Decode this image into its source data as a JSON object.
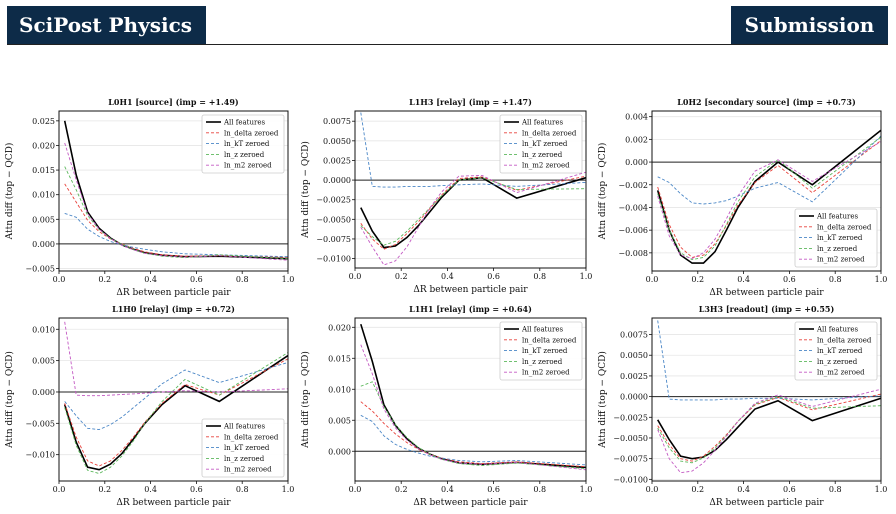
{
  "header": {
    "journal": "SciPost Physics",
    "section": "Submission"
  },
  "chart_data": [
    {
      "type": "line",
      "title": "L0H1  [source]  (imp = +1.49)",
      "xlabel": "ΔR between particle pair",
      "ylabel": "Attn diff (top − QCD)",
      "xlim": [
        0,
        1
      ],
      "ylim": [
        -0.0055,
        0.027
      ],
      "xticks": [
        0.0,
        0.2,
        0.4,
        0.6,
        0.8,
        1.0
      ],
      "xtick_labels": [
        "0.0",
        "0.2",
        "0.4",
        "0.6",
        "0.8",
        "1.0"
      ],
      "yticks": [
        -0.005,
        0,
        0.005,
        0.01,
        0.015,
        0.02,
        0.025
      ],
      "ytick_labels": [
        "−0.005",
        "0.000",
        "0.005",
        "0.010",
        "0.015",
        "0.020",
        "0.025"
      ],
      "legend_position": "top-right",
      "x": [
        0.025,
        0.075,
        0.125,
        0.175,
        0.225,
        0.275,
        0.325,
        0.375,
        0.45,
        0.55,
        0.7,
        1.0
      ],
      "series": [
        {
          "name": "All features",
          "color": "#000000",
          "values": [
            0.025,
            0.014,
            0.0065,
            0.0032,
            0.0012,
            -0.0002,
            -0.0011,
            -0.0018,
            -0.0023,
            -0.0026,
            -0.0025,
            -0.003
          ]
        },
        {
          "name": "ln_delta zeroed",
          "color": "#e8403a",
          "values": [
            0.0122,
            0.0085,
            0.0048,
            0.0025,
            0.001,
            0,
            -0.0009,
            -0.0016,
            -0.0022,
            -0.0025,
            -0.0024,
            -0.0027
          ]
        },
        {
          "name": "ln_kT zeroed",
          "color": "#4a86c6",
          "values": [
            0.0062,
            0.0054,
            0.003,
            0.0015,
            0.0005,
            -0.0002,
            -0.0007,
            -0.0011,
            -0.0016,
            -0.002,
            -0.0022,
            -0.0026
          ]
        },
        {
          "name": "ln_z zeroed",
          "color": "#5cb85c",
          "values": [
            0.0157,
            0.011,
            0.0058,
            0.0029,
            0.0011,
            -0.0001,
            -0.0011,
            -0.0019,
            -0.0025,
            -0.0028,
            -0.0022,
            -0.003
          ]
        },
        {
          "name": "ln_m2 zeroed",
          "color": "#c359c3",
          "values": [
            0.0205,
            0.013,
            0.0062,
            0.003,
            0.0011,
            -0.0003,
            -0.0012,
            -0.0019,
            -0.0024,
            -0.0027,
            -0.0024,
            -0.0033
          ]
        }
      ]
    },
    {
      "type": "line",
      "title": "L1H3  [relay]  (imp = +1.47)",
      "xlabel": "ΔR between particle pair",
      "ylabel": "Attn diff (top − QCD)",
      "xlim": [
        0,
        1
      ],
      "ylim": [
        -0.0112,
        0.0088
      ],
      "xticks": [
        0.0,
        0.2,
        0.4,
        0.6,
        0.8,
        1.0
      ],
      "xtick_labels": [
        "0.0",
        "0.2",
        "0.4",
        "0.6",
        "0.8",
        "1.0"
      ],
      "yticks": [
        -0.01,
        -0.0075,
        -0.005,
        -0.0025,
        0,
        0.0025,
        0.005,
        0.0075
      ],
      "ytick_labels": [
        "−0.0100",
        "−0.0075",
        "−0.0050",
        "−0.0025",
        "0.0000",
        "0.0025",
        "0.0050",
        "0.0075"
      ],
      "legend_position": "top-right",
      "x": [
        0.025,
        0.075,
        0.125,
        0.175,
        0.225,
        0.275,
        0.325,
        0.375,
        0.45,
        0.55,
        0.7,
        1.0
      ],
      "series": [
        {
          "name": "All features",
          "color": "#000000",
          "values": [
            -0.0035,
            -0.0065,
            -0.0086,
            -0.0084,
            -0.0073,
            -0.0058,
            -0.004,
            -0.0022,
            0,
            0.0003,
            -0.0023,
            0.0003
          ]
        },
        {
          "name": "ln_delta zeroed",
          "color": "#e8403a",
          "values": [
            -0.0055,
            -0.0075,
            -0.0088,
            -0.0082,
            -0.0068,
            -0.0053,
            -0.0036,
            -0.0019,
            0.0002,
            0.0004,
            -0.0013,
            0.0005
          ]
        },
        {
          "name": "ln_kT zeroed",
          "color": "#4a86c6",
          "values": [
            0.0086,
            -0.0008,
            -0.0009,
            -0.0009,
            -0.0008,
            -0.0008,
            -0.0008,
            -0.0007,
            -0.0006,
            -0.0005,
            -0.0008,
            -0.0003
          ]
        },
        {
          "name": "ln_z zeroed",
          "color": "#5cb85c",
          "values": [
            -0.0058,
            -0.0072,
            -0.0083,
            -0.0078,
            -0.0065,
            -0.005,
            -0.0035,
            -0.002,
            0,
            0.0003,
            -0.0012,
            -0.0011
          ]
        },
        {
          "name": "ln_m2 zeroed",
          "color": "#c359c3",
          "values": [
            -0.006,
            -0.0085,
            -0.0108,
            -0.0103,
            -0.0085,
            -0.006,
            -0.0035,
            -0.0015,
            0.0005,
            0.0006,
            -0.0016,
            0.001
          ]
        }
      ]
    },
    {
      "type": "line",
      "title": "L0H2  [secondary source]  (imp = +0.73)",
      "xlabel": "ΔR between particle pair",
      "ylabel": "Attn diff (top − QCD)",
      "xlim": [
        0,
        1
      ],
      "ylim": [
        -0.0096,
        0.0045
      ],
      "xticks": [
        0.0,
        0.2,
        0.4,
        0.6,
        0.8,
        1.0
      ],
      "xtick_labels": [
        "0.0",
        "0.2",
        "0.4",
        "0.6",
        "0.8",
        "1.0"
      ],
      "yticks": [
        -0.008,
        -0.006,
        -0.004,
        -0.002,
        0,
        0.002,
        0.004
      ],
      "ytick_labels": [
        "−0.008",
        "−0.006",
        "−0.004",
        "−0.002",
        "0.000",
        "0.002",
        "0.004"
      ],
      "legend_position": "bottom-right",
      "x": [
        0.025,
        0.075,
        0.125,
        0.175,
        0.225,
        0.275,
        0.325,
        0.375,
        0.45,
        0.55,
        0.7,
        1.0
      ],
      "series": [
        {
          "name": "All features",
          "color": "#000000",
          "values": [
            -0.0025,
            -0.006,
            -0.0082,
            -0.0089,
            -0.0089,
            -0.0079,
            -0.006,
            -0.004,
            -0.0017,
            0,
            -0.002,
            0.0028
          ]
        },
        {
          "name": "ln_delta zeroed",
          "color": "#e8403a",
          "values": [
            -0.0022,
            -0.0055,
            -0.0075,
            -0.0084,
            -0.0082,
            -0.0072,
            -0.0056,
            -0.0038,
            -0.0018,
            -0.0003,
            -0.0027,
            0.0019
          ]
        },
        {
          "name": "ln_kT zeroed",
          "color": "#4a86c6",
          "values": [
            -0.0013,
            -0.0018,
            -0.0028,
            -0.0036,
            -0.0037,
            -0.0036,
            -0.0034,
            -0.003,
            -0.0023,
            -0.0018,
            -0.0035,
            0.0023
          ]
        },
        {
          "name": "ln_z zeroed",
          "color": "#5cb85c",
          "values": [
            -0.0028,
            -0.006,
            -0.008,
            -0.0086,
            -0.0084,
            -0.0074,
            -0.0055,
            -0.0035,
            -0.0013,
            0.0002,
            -0.0023,
            0.0022
          ]
        },
        {
          "name": "ln_m2 zeroed",
          "color": "#c359c3",
          "values": [
            -0.003,
            -0.0065,
            -0.0082,
            -0.0085,
            -0.008,
            -0.0068,
            -0.005,
            -0.003,
            -0.0008,
            0.0002,
            -0.0017,
            0.0018
          ]
        }
      ]
    },
    {
      "type": "line",
      "title": "L1H0  [relay]  (imp = +0.72)",
      "xlabel": "ΔR between particle pair",
      "ylabel": "Attn diff (top − QCD)",
      "xlim": [
        0,
        1
      ],
      "ylim": [
        -0.0142,
        0.0118
      ],
      "xticks": [
        0.0,
        0.2,
        0.4,
        0.6,
        0.8,
        1.0
      ],
      "xtick_labels": [
        "0.0",
        "0.2",
        "0.4",
        "0.6",
        "0.8",
        "1.0"
      ],
      "yticks": [
        -0.01,
        -0.005,
        0,
        0.005,
        0.01
      ],
      "ytick_labels": [
        "−0.010",
        "−0.005",
        "0.000",
        "0.005",
        "0.010"
      ],
      "legend_position": "bottom-right",
      "x": [
        0.025,
        0.075,
        0.125,
        0.175,
        0.225,
        0.275,
        0.325,
        0.375,
        0.45,
        0.55,
        0.7,
        1.0
      ],
      "series": [
        {
          "name": "All features",
          "color": "#000000",
          "values": [
            -0.002,
            -0.008,
            -0.012,
            -0.0124,
            -0.0115,
            -0.0098,
            -0.0075,
            -0.005,
            -0.002,
            0.001,
            -0.0015,
            0.0058
          ]
        },
        {
          "name": "ln_delta zeroed",
          "color": "#e8403a",
          "values": [
            -0.0018,
            -0.0072,
            -0.011,
            -0.0118,
            -0.011,
            -0.0093,
            -0.0072,
            -0.0048,
            -0.0018,
            0.0012,
            -0.0005,
            0.0053
          ]
        },
        {
          "name": "ln_kT zeroed",
          "color": "#4a86c6",
          "values": [
            -0.0015,
            -0.0038,
            -0.0058,
            -0.006,
            -0.0052,
            -0.004,
            -0.0025,
            -0.001,
            0.0013,
            0.0035,
            0.0015,
            0.0047
          ]
        },
        {
          "name": "ln_z zeroed",
          "color": "#5cb85c",
          "values": [
            -0.0025,
            -0.0085,
            -0.0125,
            -0.013,
            -0.012,
            -0.0102,
            -0.0078,
            -0.005,
            -0.0015,
            0.002,
            -0.0005,
            0.0063
          ]
        },
        {
          "name": "ln_m2 zeroed",
          "color": "#c359c3",
          "values": [
            0.0112,
            -0.0005,
            -0.0006,
            -0.0006,
            -0.0005,
            -0.0004,
            -0.0003,
            -0.0002,
            0,
            0.0002,
            0,
            0.0005
          ]
        }
      ]
    },
    {
      "type": "line",
      "title": "L1H1  [relay]  (imp = +0.64)",
      "xlabel": "ΔR between particle pair",
      "ylabel": "Attn diff (top − QCD)",
      "xlim": [
        0,
        1
      ],
      "ylim": [
        -0.0048,
        0.0215
      ],
      "xticks": [
        0.0,
        0.2,
        0.4,
        0.6,
        0.8,
        1.0
      ],
      "xtick_labels": [
        "0.0",
        "0.2",
        "0.4",
        "0.6",
        "0.8",
        "1.0"
      ],
      "yticks": [
        0,
        0.005,
        0.01,
        0.015,
        0.02
      ],
      "ytick_labels": [
        "0.000",
        "0.005",
        "0.010",
        "0.015",
        "0.020"
      ],
      "legend_position": "top-right",
      "x": [
        0.025,
        0.075,
        0.125,
        0.175,
        0.225,
        0.275,
        0.325,
        0.375,
        0.45,
        0.55,
        0.7,
        1.0
      ],
      "series": [
        {
          "name": "All features",
          "color": "#000000",
          "values": [
            0.0205,
            0.0145,
            0.0075,
            0.0042,
            0.002,
            0.0005,
            -0.0005,
            -0.0012,
            -0.0019,
            -0.0021,
            -0.0018,
            -0.0026
          ]
        },
        {
          "name": "ln_delta zeroed",
          "color": "#e8403a",
          "values": [
            0.008,
            0.0065,
            0.0045,
            0.0028,
            0.0014,
            0.0003,
            -0.0005,
            -0.0011,
            -0.0017,
            -0.002,
            -0.0017,
            -0.0025
          ]
        },
        {
          "name": "ln_kT zeroed",
          "color": "#4a86c6",
          "values": [
            0.0058,
            0.0048,
            0.0025,
            0.0011,
            0.0003,
            -0.0003,
            -0.0008,
            -0.0011,
            -0.0015,
            -0.0017,
            -0.0015,
            -0.0022
          ]
        },
        {
          "name": "ln_z zeroed",
          "color": "#5cb85c",
          "values": [
            0.0105,
            0.0112,
            0.0072,
            0.0043,
            0.0022,
            0.0006,
            -0.0005,
            -0.0013,
            -0.002,
            -0.0023,
            -0.0019,
            -0.0028
          ]
        },
        {
          "name": "ln_m2 zeroed",
          "color": "#c359c3",
          "values": [
            0.0172,
            0.0125,
            0.0068,
            0.0038,
            0.0018,
            0.0004,
            -0.0006,
            -0.0013,
            -0.0019,
            -0.0021,
            -0.0018,
            -0.003
          ]
        }
      ]
    },
    {
      "type": "line",
      "title": "L3H3  [readout]  (imp = +0.55)",
      "xlabel": "ΔR between particle pair",
      "ylabel": "Attn diff (top − QCD)",
      "xlim": [
        0,
        1
      ],
      "ylim": [
        -0.0102,
        0.0095
      ],
      "xticks": [
        0.0,
        0.2,
        0.4,
        0.6,
        0.8,
        1.0
      ],
      "xtick_labels": [
        "0.0",
        "0.2",
        "0.4",
        "0.6",
        "0.8",
        "1.0"
      ],
      "yticks": [
        -0.01,
        -0.0075,
        -0.005,
        -0.0025,
        0,
        0.0025,
        0.005,
        0.0075
      ],
      "ytick_labels": [
        "−0.0100",
        "−0.0075",
        "−0.0050",
        "−0.0025",
        "0.0000",
        "0.0025",
        "0.0050",
        "0.0075"
      ],
      "legend_position": "top-right",
      "x": [
        0.025,
        0.075,
        0.125,
        0.175,
        0.225,
        0.275,
        0.325,
        0.375,
        0.45,
        0.55,
        0.7,
        1.0
      ],
      "series": [
        {
          "name": "All features",
          "color": "#000000",
          "values": [
            -0.0028,
            -0.0052,
            -0.0072,
            -0.0075,
            -0.0073,
            -0.0065,
            -0.0052,
            -0.0037,
            -0.0015,
            -0.0005,
            -0.0029,
            -0.0002
          ]
        },
        {
          "name": "ln_delta zeroed",
          "color": "#e8403a",
          "values": [
            -0.0035,
            -0.0058,
            -0.0075,
            -0.0078,
            -0.0072,
            -0.006,
            -0.0046,
            -0.003,
            -0.001,
            -0.0001,
            -0.0016,
            0.0003
          ]
        },
        {
          "name": "ln_kT zeroed",
          "color": "#4a86c6",
          "values": [
            0.0092,
            -0.0003,
            -0.0004,
            -0.0004,
            -0.0004,
            -0.0004,
            -0.0003,
            -0.0003,
            -0.0002,
            -0.0002,
            -0.0004,
            0.0001
          ]
        },
        {
          "name": "ln_z zeroed",
          "color": "#5cb85c",
          "values": [
            -0.0038,
            -0.0062,
            -0.0078,
            -0.008,
            -0.0074,
            -0.0062,
            -0.0047,
            -0.003,
            -0.0009,
            0,
            -0.0014,
            -0.0011
          ]
        },
        {
          "name": "ln_m2 zeroed",
          "color": "#c359c3",
          "values": [
            -0.004,
            -0.0075,
            -0.0092,
            -0.009,
            -0.008,
            -0.0065,
            -0.0048,
            -0.003,
            -0.0008,
            0.0002,
            -0.0012,
            0.0009
          ]
        }
      ]
    }
  ]
}
